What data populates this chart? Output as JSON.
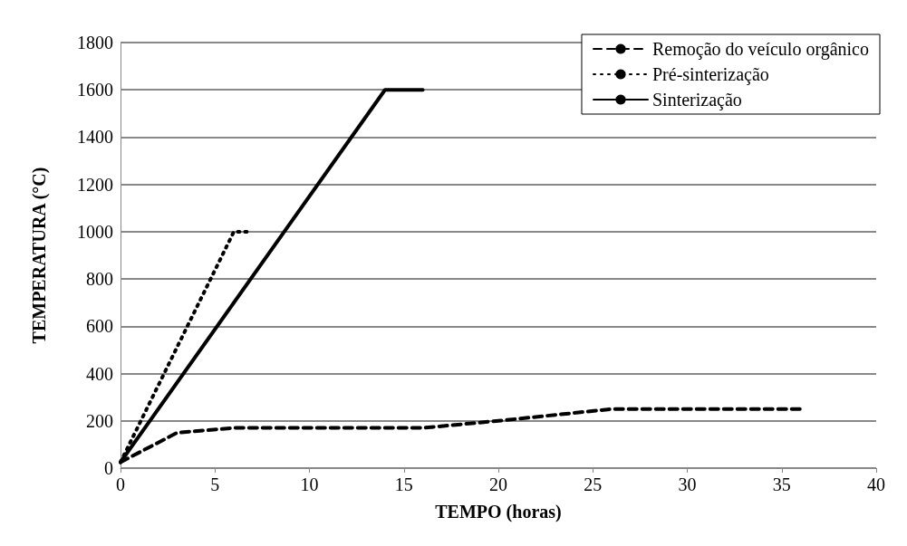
{
  "chart_data": {
    "type": "line",
    "xlabel": "TEMPO (horas)",
    "ylabel": "TEMPERATURA (°C)",
    "xlim": [
      0,
      40
    ],
    "xticks": [
      0,
      5,
      10,
      15,
      20,
      25,
      30,
      35,
      40
    ],
    "ylim": [
      0,
      1800
    ],
    "yticks": [
      0,
      200,
      400,
      600,
      800,
      1000,
      1200,
      1400,
      1600,
      1800
    ],
    "grid": "y",
    "legend": "top right",
    "marker": "none",
    "series": [
      {
        "name": "Remoção do veículo orgânico",
        "color": "#000000",
        "line_style": "dashed",
        "x": [
          0,
          3,
          6,
          16,
          20,
          26,
          36
        ],
        "values": [
          25,
          150,
          170,
          170,
          200,
          250,
          250
        ]
      },
      {
        "name": "Pré-sinterização",
        "color": "#000000",
        "line_style": "dotted",
        "x": [
          0,
          6,
          6.7
        ],
        "values": [
          25,
          1000,
          1000
        ]
      },
      {
        "name": "Sinterização",
        "color": "#000000",
        "line_style": "solid",
        "x": [
          0,
          14,
          16
        ],
        "values": [
          25,
          1600,
          1600
        ]
      }
    ]
  }
}
